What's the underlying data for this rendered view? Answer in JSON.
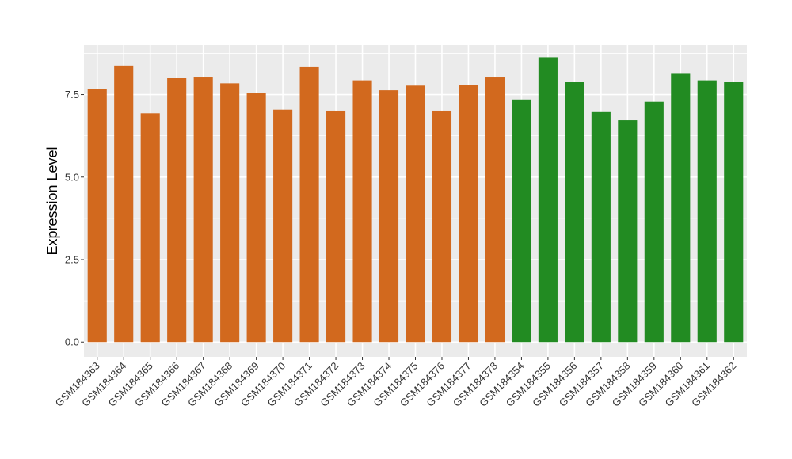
{
  "chart_data": {
    "type": "bar",
    "title": "",
    "xlabel": "",
    "ylabel": "Expression Level",
    "ylim": [
      -0.45,
      9.0
    ],
    "yticks": [
      0.0,
      2.5,
      5.0,
      7.5
    ],
    "ytick_labels": [
      "0.0",
      "2.5",
      "5.0",
      "7.5"
    ],
    "grid": true,
    "legend": "none",
    "panel_background": "#ebebeb",
    "categories": [
      "GSM184363",
      "GSM184364",
      "GSM184365",
      "GSM184366",
      "GSM184367",
      "GSM184368",
      "GSM184369",
      "GSM184370",
      "GSM184371",
      "GSM184372",
      "GSM184373",
      "GSM184374",
      "GSM184375",
      "GSM184376",
      "GSM184377",
      "GSM184378",
      "GSM184354",
      "GSM184355",
      "GSM184356",
      "GSM184357",
      "GSM184358",
      "GSM184359",
      "GSM184360",
      "GSM184361",
      "GSM184362"
    ],
    "values": [
      7.68,
      8.38,
      6.93,
      8.0,
      8.04,
      7.84,
      7.55,
      7.04,
      8.33,
      7.01,
      7.93,
      7.63,
      7.77,
      7.01,
      7.78,
      8.04,
      7.35,
      8.63,
      7.88,
      6.99,
      6.72,
      7.28,
      8.15,
      7.93,
      7.88
    ],
    "bar_colors": [
      "#d2691e",
      "#d2691e",
      "#d2691e",
      "#d2691e",
      "#d2691e",
      "#d2691e",
      "#d2691e",
      "#d2691e",
      "#d2691e",
      "#d2691e",
      "#d2691e",
      "#d2691e",
      "#d2691e",
      "#d2691e",
      "#d2691e",
      "#d2691e",
      "#228b22",
      "#228b22",
      "#228b22",
      "#228b22",
      "#228b22",
      "#228b22",
      "#228b22",
      "#228b22",
      "#228b22"
    ]
  }
}
